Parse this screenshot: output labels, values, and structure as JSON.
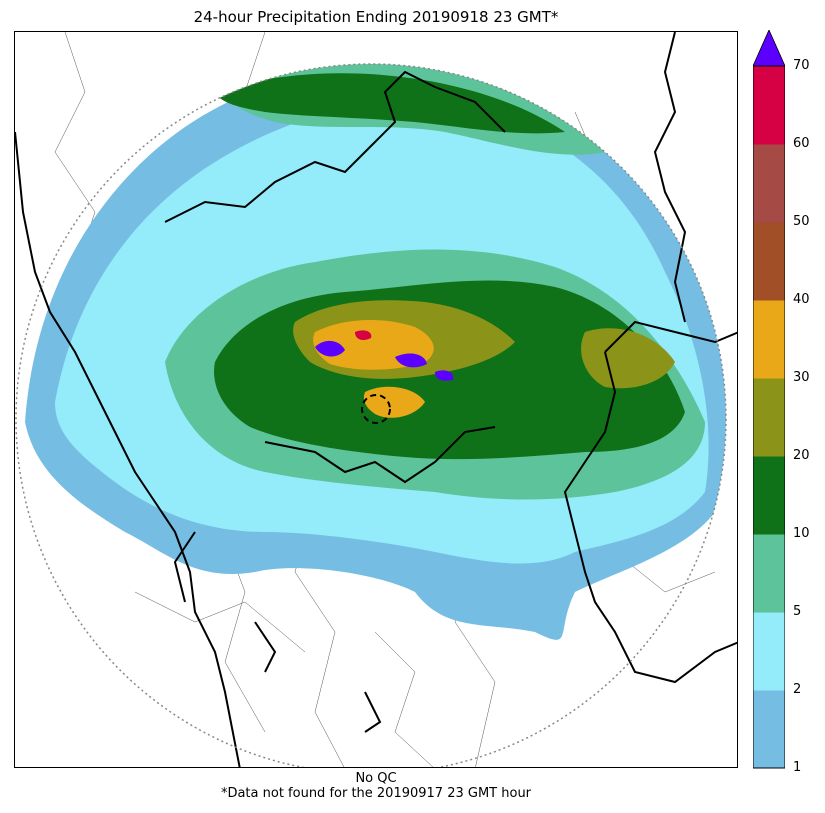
{
  "title": "24-hour Precipitation Ending 20190918 23 GMT*",
  "footer": {
    "qc_note": "No QC",
    "missing_note": "*Data not found for the 20190917 23 GMT hour"
  },
  "map": {
    "product": "24-hour radar precipitation estimate",
    "range_ring": "dotted",
    "radar_site_marker": "dashed-circle"
  },
  "legend": {
    "levels": [
      "1",
      "2",
      "5",
      "10",
      "20",
      "30",
      "40",
      "50",
      "60",
      "70"
    ],
    "colors": [
      "#75bde2",
      "#94ebfa",
      "#5dc39a",
      "#0f7218",
      "#8b9418",
      "#e8a818",
      "#a14f26",
      "#a54a45",
      "#d60045"
    ],
    "extend_max_color": "#5b00ff",
    "extend_max": "triangle"
  }
}
